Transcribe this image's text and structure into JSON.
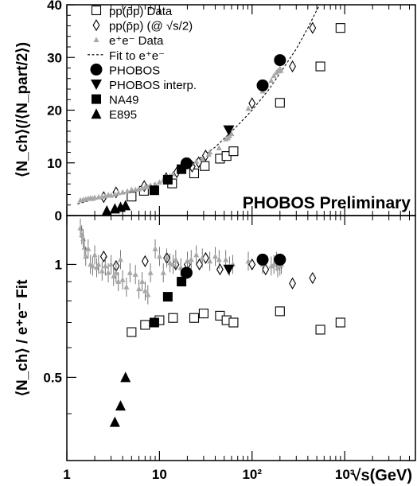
{
  "chart_data": [
    {
      "type": "scatter",
      "x_scale": "log",
      "xlim": [
        1,
        5800
      ],
      "ylim": [
        0,
        40
      ],
      "ylabel": "⟨N_ch⟩(/⟨N_part/2⟩)",
      "y_ticks": [
        "0",
        "10",
        "20",
        "30",
        "40"
      ],
      "annotation": "PHOBOS Preliminary",
      "legend_position": "top-left",
      "legend": [
        {
          "key": "pp",
          "label": "pp(p̄p) Data"
        },
        {
          "key": "ppscaled",
          "label": "pp(p̄p) (@ √s/2)"
        },
        {
          "key": "ee",
          "label": "e⁺e⁻ Data"
        },
        {
          "key": "fit",
          "label": "Fit to e⁺e⁻"
        },
        {
          "key": "phobos",
          "label": "PHOBOS"
        },
        {
          "key": "interp",
          "label": "PHOBOS interp."
        },
        {
          "key": "na49",
          "label": "NA49"
        },
        {
          "key": "e895",
          "label": "E895"
        }
      ],
      "series": [
        {
          "key": "pp",
          "name": "pp(p̄p) Data",
          "marker": "open-square",
          "color": "#000000",
          "points": [
            [
              5,
              3.6
            ],
            [
              6.8,
              4.7
            ],
            [
              13.7,
              6.1
            ],
            [
              23.7,
              8
            ],
            [
              30.8,
              9.4
            ],
            [
              45,
              10.8
            ],
            [
              53,
              11.3
            ],
            [
              63,
              12.2
            ],
            [
              200,
              21.4
            ],
            [
              546,
              28.3
            ],
            [
              900,
              35.6
            ]
          ]
        },
        {
          "key": "ppscaled",
          "name": "pp(p̄p) (@ √s/2)",
          "marker": "open-diamond",
          "color": "#000000",
          "points": [
            [
              2.5,
              3.5
            ],
            [
              3.4,
              4.4
            ],
            [
              6.85,
              5.6
            ],
            [
              11.8,
              7.1
            ],
            [
              15.4,
              8.2
            ],
            [
              22.5,
              9.3
            ],
            [
              26.5,
              10.1
            ],
            [
              31.5,
              11.4
            ],
            [
              100,
              21.3
            ],
            [
              273,
              28.3
            ],
            [
              450,
              35.6
            ]
          ]
        },
        {
          "key": "ee",
          "name": "e⁺e⁻ Data",
          "marker": "small-triangle",
          "color": "#a8a8a8",
          "points": [
            [
              1.4,
              2.9
            ],
            [
              1.5,
              3.0
            ],
            [
              1.6,
              3.1
            ],
            [
              1.7,
              3.2
            ],
            [
              1.8,
              3.3
            ],
            [
              1.9,
              3.2
            ],
            [
              2.0,
              3.4
            ],
            [
              2.2,
              3.5
            ],
            [
              2.4,
              3.6
            ],
            [
              2.6,
              3.7
            ],
            [
              2.8,
              3.9
            ],
            [
              3.0,
              3.8
            ],
            [
              3.3,
              4.0
            ],
            [
              3.6,
              4.3
            ],
            [
              4.0,
              4.4
            ],
            [
              4.5,
              4.6
            ],
            [
              5.0,
              4.9
            ],
            [
              5.5,
              4.9
            ],
            [
              6.0,
              5.0
            ],
            [
              6.5,
              5.2
            ],
            [
              7.0,
              5.4
            ],
            [
              7.5,
              5.4
            ],
            [
              8.0,
              5.7
            ],
            [
              9.0,
              5.9
            ],
            [
              10,
              6.3
            ],
            [
              11,
              6.7
            ],
            [
              12,
              7.2
            ],
            [
              13,
              7.5
            ],
            [
              14,
              7.9
            ],
            [
              17,
              8.7
            ],
            [
              22,
              9.8
            ],
            [
              25,
              10.3
            ],
            [
              29,
              10.7
            ],
            [
              34,
              11.6
            ],
            [
              35,
              12.0
            ],
            [
              44,
              12.8
            ],
            [
              52,
              14.5
            ],
            [
              55,
              14.7
            ],
            [
              57,
              15.1
            ],
            [
              60,
              15.5
            ],
            [
              91,
              20.3
            ],
            [
              130,
              23.6
            ],
            [
              133,
              24.0
            ],
            [
              161,
              25.6
            ],
            [
              172,
              26.5
            ],
            [
              183,
              27.1
            ],
            [
              189,
              27.4
            ],
            [
              200,
              27.9
            ],
            [
              205,
              27.5
            ]
          ]
        },
        {
          "key": "phobos",
          "name": "PHOBOS",
          "marker": "filled-circle",
          "color": "#000000",
          "points": [
            [
              19.6,
              9.9
            ],
            [
              130,
              24.7
            ],
            [
              200,
              29.5
            ]
          ]
        },
        {
          "key": "interp",
          "name": "PHOBOS interp.",
          "marker": "filled-triangle-down",
          "color": "#000000",
          "points": [
            [
              56,
              16.2
            ]
          ]
        },
        {
          "key": "na49",
          "name": "NA49",
          "marker": "filled-square",
          "color": "#000000",
          "points": [
            [
              8.8,
              4.8
            ],
            [
              12.3,
              6.8
            ],
            [
              17.3,
              8.8
            ]
          ]
        },
        {
          "key": "e895",
          "name": "E895",
          "marker": "filled-triangle-up",
          "color": "#000000",
          "points": [
            [
              2.7,
              0.9
            ],
            [
              3.3,
              1.3
            ],
            [
              3.8,
              1.6
            ],
            [
              4.3,
              1.9
            ]
          ]
        }
      ],
      "fit": {
        "key": "fit",
        "name": "Fit to e⁺e⁻",
        "style": "dashed",
        "points": [
          [
            1.3,
            2.2
          ],
          [
            2,
            3.1
          ],
          [
            3,
            3.7
          ],
          [
            5,
            4.6
          ],
          [
            10,
            6.4
          ],
          [
            20,
            9.2
          ],
          [
            40,
            13.0
          ],
          [
            70,
            17.1
          ],
          [
            100,
            20.0
          ],
          [
            150,
            23.8
          ],
          [
            200,
            27.0
          ],
          [
            300,
            31.6
          ],
          [
            400,
            35.6
          ],
          [
            500,
            39.0
          ],
          [
            540,
            40.0
          ]
        ]
      }
    },
    {
      "type": "scatter",
      "x_scale": "log",
      "xlim": [
        1,
        5800
      ],
      "y_scale": "log",
      "ylim": [
        0.3,
        1.35
      ],
      "xlabel": "√s(GeV)",
      "ylabel": "⟨N_ch⟩ / e⁺e⁻ Fit",
      "x_ticks": [
        "1",
        "10",
        "10²",
        "10³"
      ],
      "y_ticks": [
        "0.5",
        "1"
      ],
      "series": [
        {
          "key": "pp",
          "name": "pp(p̄p) Data",
          "marker": "open-square",
          "color": "#000000",
          "points": [
            [
              5,
              0.66
            ],
            [
              7,
              0.69
            ],
            [
              10,
              0.71
            ],
            [
              14,
              0.72
            ],
            [
              23.7,
              0.72
            ],
            [
              30,
              0.74
            ],
            [
              45,
              0.73
            ],
            [
              53,
              0.71
            ],
            [
              63,
              0.7
            ],
            [
              200,
              0.75
            ],
            [
              546,
              0.67
            ],
            [
              900,
              0.7
            ]
          ]
        },
        {
          "key": "ppscaled",
          "name": "pp(p̄p) (@ √s/2)",
          "marker": "open-diamond",
          "color": "#000000",
          "points": [
            [
              2.5,
              1.05
            ],
            [
              3.4,
              0.99
            ],
            [
              7,
              1.02
            ],
            [
              12,
              1.04
            ],
            [
              15,
              1.0
            ],
            [
              20,
              1.0
            ],
            [
              27,
              1.0
            ],
            [
              31.5,
              1.04
            ],
            [
              45,
              0.97
            ],
            [
              100,
              1.0
            ],
            [
              140,
              0.97
            ],
            [
              273,
              0.89
            ],
            [
              450,
              0.92
            ]
          ]
        },
        {
          "key": "ee",
          "name": "e⁺e⁻ Data",
          "marker": "small-triangle",
          "color": "#a8a8a8",
          "points": [
            [
              1.4,
              1.25
            ],
            [
              1.45,
              1.2
            ],
            [
              1.5,
              1.17
            ],
            [
              1.55,
              1.11
            ],
            [
              1.6,
              1.05
            ],
            [
              1.7,
              1.1
            ],
            [
              1.8,
              1.0
            ],
            [
              1.9,
              0.99
            ],
            [
              2.0,
              1.06
            ],
            [
              2.1,
              0.98
            ],
            [
              2.2,
              1.0
            ],
            [
              2.4,
              0.96
            ],
            [
              2.6,
              0.99
            ],
            [
              2.8,
              0.95
            ],
            [
              3.0,
              1.0
            ],
            [
              3.2,
              0.93
            ],
            [
              3.4,
              0.95
            ],
            [
              3.6,
              0.9
            ],
            [
              3.8,
              1.03
            ],
            [
              4.0,
              0.91
            ],
            [
              4.4,
              0.87
            ],
            [
              4.8,
              0.95
            ],
            [
              5.5,
              0.94
            ],
            [
              6.0,
              0.86
            ],
            [
              6.5,
              0.9
            ],
            [
              7.0,
              0.85
            ],
            [
              7.5,
              0.83
            ],
            [
              8.0,
              0.95
            ],
            [
              9.0,
              1.1
            ],
            [
              10,
              1.05
            ],
            [
              11,
              0.95
            ],
            [
              12,
              1.04
            ],
            [
              13,
              1.01
            ],
            [
              14,
              1.0
            ],
            [
              15,
              1.03
            ],
            [
              17,
              0.98
            ],
            [
              20,
              1.02
            ],
            [
              22,
              1.03
            ],
            [
              25,
              1.06
            ],
            [
              29,
              1.04
            ],
            [
              35,
              1.02
            ],
            [
              40,
              1.05
            ],
            [
              44,
              1.03
            ],
            [
              52,
              1.03
            ],
            [
              57,
              0.99
            ],
            [
              62,
              1.0
            ],
            [
              91,
              1.02
            ],
            [
              130,
              1.0
            ],
            [
              161,
              0.99
            ],
            [
              172,
              1.0
            ],
            [
              183,
              1.02
            ],
            [
              189,
              0.98
            ],
            [
              200,
              0.99
            ],
            [
              207,
              1.0
            ]
          ]
        },
        {
          "key": "phobos",
          "name": "PHOBOS",
          "marker": "filled-circle",
          "color": "#000000",
          "points": [
            [
              19.6,
              0.95
            ],
            [
              130,
              1.03
            ],
            [
              200,
              1.03
            ]
          ]
        },
        {
          "key": "interp",
          "name": "PHOBOS interp.",
          "marker": "filled-triangle-down",
          "color": "#000000",
          "points": [
            [
              56,
              0.97
            ]
          ]
        },
        {
          "key": "na49",
          "name": "NA49",
          "marker": "filled-square",
          "color": "#000000",
          "points": [
            [
              8.8,
              0.7
            ],
            [
              12.3,
              0.82
            ],
            [
              17.3,
              0.9
            ]
          ]
        },
        {
          "key": "e895",
          "name": "E895",
          "marker": "filled-triangle-up",
          "color": "#000000",
          "points": [
            [
              2.7,
              0.28
            ],
            [
              3.3,
              0.38
            ],
            [
              3.8,
              0.42
            ],
            [
              4.3,
              0.5
            ]
          ]
        }
      ]
    }
  ]
}
